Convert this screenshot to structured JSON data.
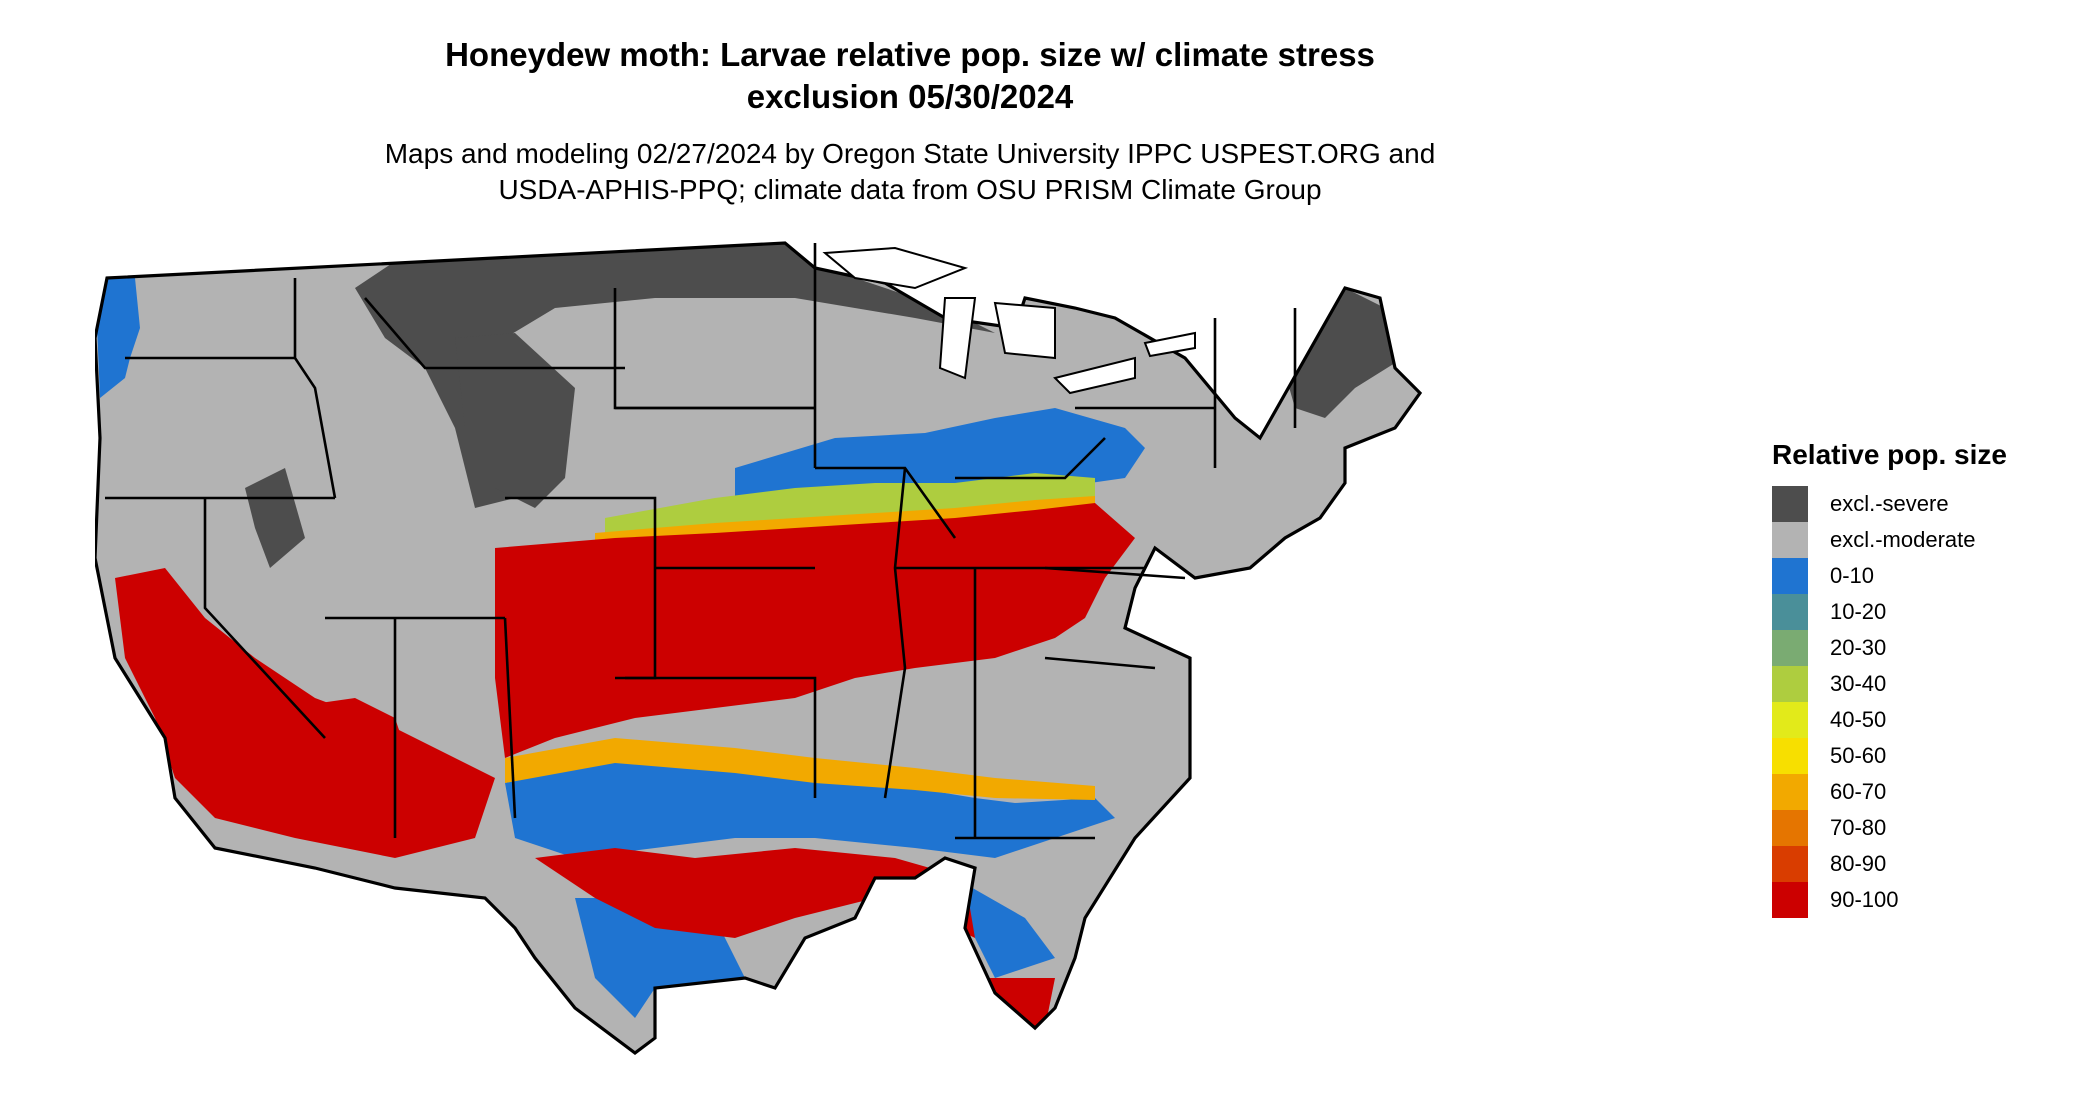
{
  "title": {
    "line1": "Honeydew moth: Larvae relative pop. size w/ climate stress",
    "line2": "exclusion 05/30/2024"
  },
  "subtitle": {
    "line1": "Maps and modeling 02/27/2024 by Oregon State University IPPC USPEST.ORG and",
    "line2": "USDA-APHIS-PPQ; climate data from OSU PRISM Climate Group"
  },
  "legend": {
    "title": "Relative pop. size",
    "items": [
      {
        "label": "excl.-severe",
        "color": "#4d4d4d"
      },
      {
        "label": "excl.-moderate",
        "color": "#b3b3b3"
      },
      {
        "label": "0-10",
        "color": "#1f74d1"
      },
      {
        "label": "10-20",
        "color": "#4a8f99"
      },
      {
        "label": "20-30",
        "color": "#7aab72"
      },
      {
        "label": "30-40",
        "color": "#aecd3f"
      },
      {
        "label": "40-50",
        "color": "#e2ea1a"
      },
      {
        "label": "50-60",
        "color": "#f7df00"
      },
      {
        "label": "60-70",
        "color": "#f2a900"
      },
      {
        "label": "70-80",
        "color": "#e57500"
      },
      {
        "label": "80-90",
        "color": "#d93d00"
      },
      {
        "label": "90-100",
        "color": "#cc0000"
      }
    ]
  }
}
